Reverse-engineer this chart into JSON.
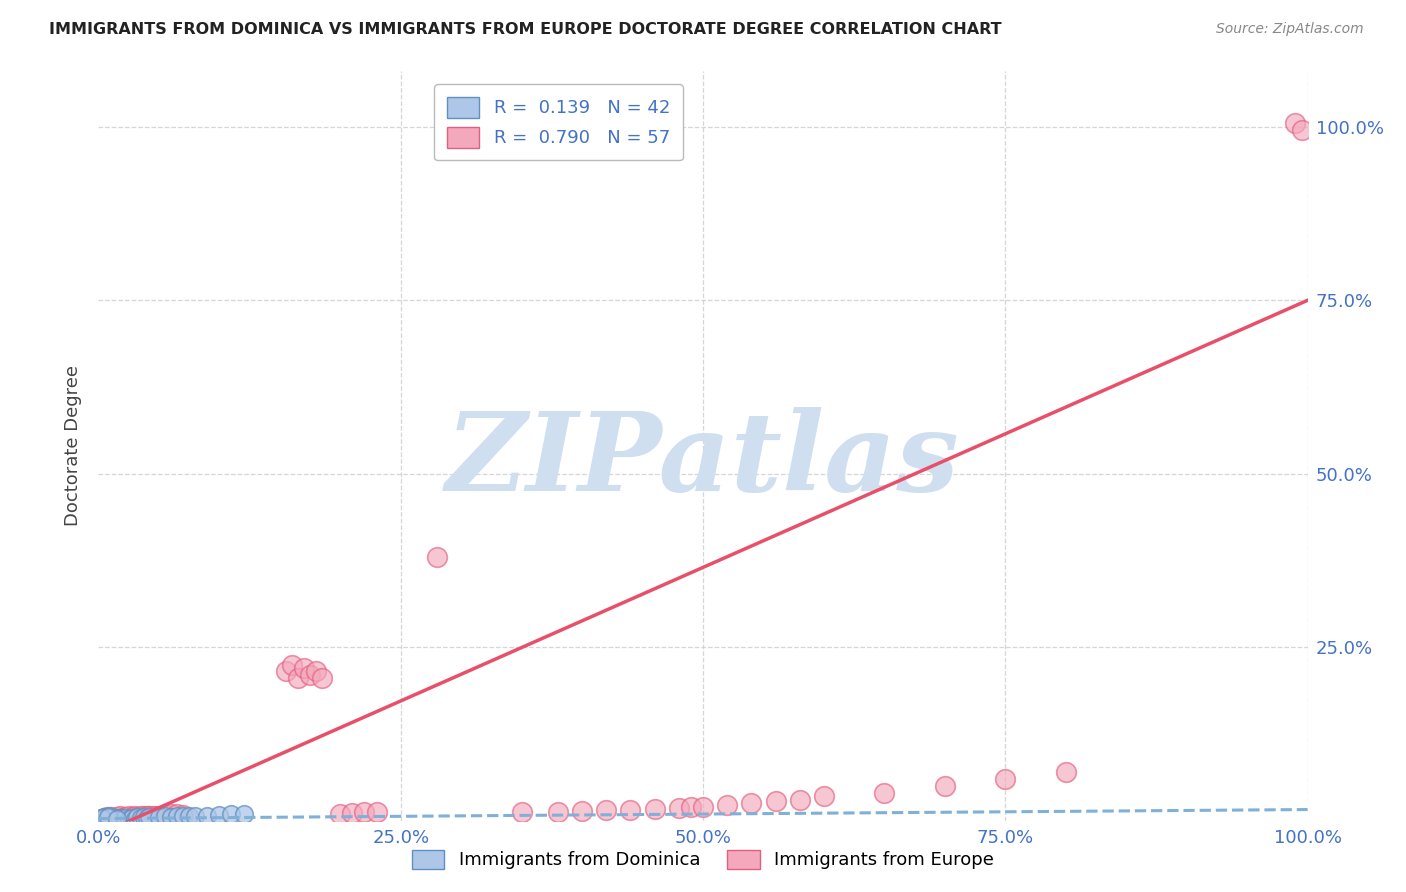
{
  "title": "IMMIGRANTS FROM DOMINICA VS IMMIGRANTS FROM EUROPE DOCTORATE DEGREE CORRELATION CHART",
  "source": "Source: ZipAtlas.com",
  "ylabel": "Doctorate Degree",
  "xlim": [
    0,
    1.0
  ],
  "ylim": [
    0,
    1.08
  ],
  "xticks": [
    0.0,
    0.25,
    0.5,
    0.75,
    1.0
  ],
  "xticklabels": [
    "0.0%",
    "25.0%",
    "50.0%",
    "75.0%",
    "100.0%"
  ],
  "ytick_positions": [
    0.25,
    0.5,
    0.75,
    1.0
  ],
  "ytick_labels_right": [
    "25.0%",
    "50.0%",
    "75.0%",
    "100.0%"
  ],
  "dominica_color": "#aec6e8",
  "europe_color": "#f4a8bc",
  "dominica_edge": "#6090c0",
  "europe_edge": "#e06080",
  "line_dominica_color": "#80b0d8",
  "line_europe_color": "#e8506a",
  "R_dominica": 0.139,
  "N_dominica": 42,
  "R_europe": 0.79,
  "N_europe": 57,
  "background_color": "#ffffff",
  "watermark_text": "ZIPatlas",
  "watermark_color": "#d0dff0",
  "title_color": "#222222",
  "source_color": "#888888",
  "tick_color": "#4472C4",
  "ylabel_color": "#444444",
  "grid_color": "#cccccc",
  "legend_text_color": "#4472C4",
  "bottom_legend_color": "#555555",
  "dom_line_slope": 0.013,
  "dom_line_intercept": 0.003,
  "eur_line_slope": 0.77,
  "eur_line_intercept": -0.02,
  "dom_x": [
    0.002,
    0.003,
    0.004,
    0.005,
    0.006,
    0.007,
    0.008,
    0.009,
    0.01,
    0.011,
    0.012,
    0.013,
    0.015,
    0.016,
    0.018,
    0.02,
    0.022,
    0.025,
    0.028,
    0.03,
    0.032,
    0.035,
    0.038,
    0.04,
    0.042,
    0.005,
    0.007,
    0.009,
    0.05,
    0.055,
    0.06,
    0.065,
    0.07,
    0.075,
    0.08,
    0.09,
    0.1,
    0.11,
    0.12,
    0.003,
    0.008,
    0.015
  ],
  "dom_y": [
    0.003,
    0.002,
    0.004,
    0.003,
    0.002,
    0.004,
    0.003,
    0.002,
    0.003,
    0.004,
    0.002,
    0.003,
    0.004,
    0.003,
    0.004,
    0.003,
    0.004,
    0.003,
    0.004,
    0.003,
    0.005,
    0.004,
    0.005,
    0.004,
    0.005,
    0.005,
    0.003,
    0.006,
    0.005,
    0.006,
    0.005,
    0.007,
    0.006,
    0.007,
    0.006,
    0.007,
    0.008,
    0.009,
    0.01,
    0.004,
    0.005,
    0.003
  ],
  "eur_x": [
    0.003,
    0.005,
    0.007,
    0.008,
    0.01,
    0.012,
    0.015,
    0.018,
    0.02,
    0.022,
    0.025,
    0.028,
    0.03,
    0.032,
    0.035,
    0.038,
    0.04,
    0.042,
    0.045,
    0.048,
    0.05,
    0.055,
    0.06,
    0.065,
    0.07,
    0.155,
    0.16,
    0.165,
    0.17,
    0.175,
    0.18,
    0.185,
    0.2,
    0.21,
    0.22,
    0.23,
    0.28,
    0.35,
    0.38,
    0.4,
    0.42,
    0.44,
    0.46,
    0.48,
    0.49,
    0.5,
    0.52,
    0.54,
    0.56,
    0.58,
    0.6,
    0.65,
    0.7,
    0.75,
    0.8,
    0.99,
    0.995
  ],
  "eur_y": [
    0.003,
    0.004,
    0.005,
    0.003,
    0.005,
    0.004,
    0.005,
    0.006,
    0.004,
    0.005,
    0.006,
    0.005,
    0.006,
    0.005,
    0.007,
    0.006,
    0.007,
    0.006,
    0.007,
    0.006,
    0.007,
    0.008,
    0.009,
    0.01,
    0.008,
    0.215,
    0.225,
    0.205,
    0.22,
    0.21,
    0.215,
    0.205,
    0.01,
    0.011,
    0.012,
    0.013,
    0.38,
    0.012,
    0.013,
    0.014,
    0.015,
    0.016,
    0.017,
    0.018,
    0.019,
    0.02,
    0.022,
    0.025,
    0.028,
    0.03,
    0.035,
    0.04,
    0.05,
    0.06,
    0.07,
    1.005,
    0.995
  ]
}
